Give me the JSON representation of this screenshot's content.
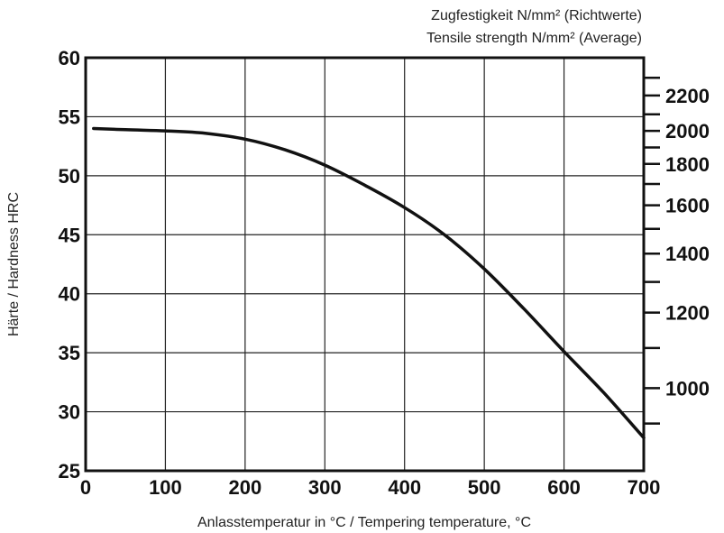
{
  "chart_data": {
    "type": "line",
    "xlabel": "Anlasstemperatur in °C / Tempering temperature, °C",
    "ylabel": "Härte / Hardness HRC",
    "y2label_line1": "Zugfestigkeit N/mm² (Richtwerte)",
    "y2label_line2": "Tensile strength N/mm² (Average)",
    "xlim": [
      0,
      700
    ],
    "ylim": [
      25,
      60
    ],
    "x_ticks": [
      0,
      100,
      200,
      300,
      400,
      500,
      600,
      700
    ],
    "y_ticks": [
      25,
      30,
      35,
      40,
      45,
      50,
      55,
      60
    ],
    "grid": true,
    "secondary_axis": {
      "labeled_ticks": [
        {
          "value": 1000,
          "at_hrc": 32.0
        },
        {
          "value": 1200,
          "at_hrc": 38.4
        },
        {
          "value": 1400,
          "at_hrc": 43.4
        },
        {
          "value": 1600,
          "at_hrc": 47.5
        },
        {
          "value": 1800,
          "at_hrc": 51.0
        },
        {
          "value": 2000,
          "at_hrc": 53.8
        },
        {
          "value": 2200,
          "at_hrc": 56.8
        }
      ],
      "minor_ticks_at_hrc": [
        29.0,
        35.4,
        41.0,
        45.5,
        49.3,
        52.4,
        55.2,
        58.3
      ]
    },
    "series": [
      {
        "x": [
          10,
          50,
          100,
          150,
          200,
          250,
          300,
          350,
          400,
          450,
          500,
          550,
          600,
          650,
          700
        ],
        "y": [
          54.0,
          53.9,
          53.8,
          53.6,
          53.1,
          52.2,
          50.9,
          49.2,
          47.3,
          45.0,
          42.1,
          38.7,
          35.1,
          31.6,
          27.8
        ]
      }
    ]
  }
}
